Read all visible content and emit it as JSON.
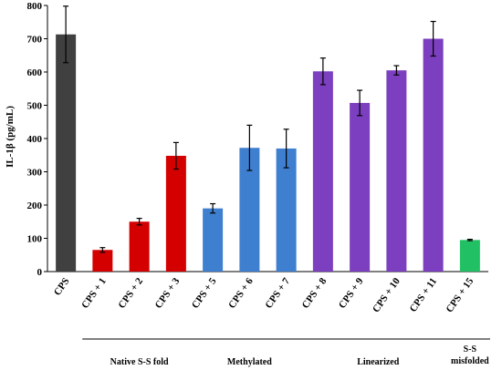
{
  "chart_data": {
    "type": "bar",
    "ylabel": "IL-1β (pg/mL)",
    "ylim": [
      0,
      800
    ],
    "yticks": [
      0,
      100,
      200,
      300,
      400,
      500,
      600,
      700,
      800
    ],
    "grid": false,
    "legend": "none",
    "categories": [
      "CPS",
      "CPS + 1",
      "CPS + 2",
      "CPS + 3",
      "CPS + 5",
      "CPS + 6",
      "CPS + 7",
      "CPS + 8",
      "CPS + 9",
      "CPS + 10",
      "CPS + 11",
      "CPS + 15"
    ],
    "values": [
      713,
      65,
      150,
      348,
      190,
      372,
      370,
      602,
      507,
      605,
      700,
      95
    ],
    "errors": [
      85,
      7,
      10,
      40,
      14,
      68,
      58,
      40,
      38,
      14,
      52,
      2
    ],
    "colors": [
      "#404040",
      "#d40000",
      "#d40000",
      "#d40000",
      "#3f7fd0",
      "#3f7fd0",
      "#3f7fd0",
      "#7b3fbf",
      "#7b3fbf",
      "#7b3fbf",
      "#7b3fbf",
      "#22c064"
    ],
    "groups": [
      {
        "label": "Native S-S fold",
        "start": 1,
        "end": 3
      },
      {
        "label": "Methylated",
        "start": 4,
        "end": 6
      },
      {
        "label": "Linearized",
        "start": 7,
        "end": 10
      },
      {
        "label": "S-S misfolded",
        "start": 11,
        "end": 11
      }
    ]
  }
}
